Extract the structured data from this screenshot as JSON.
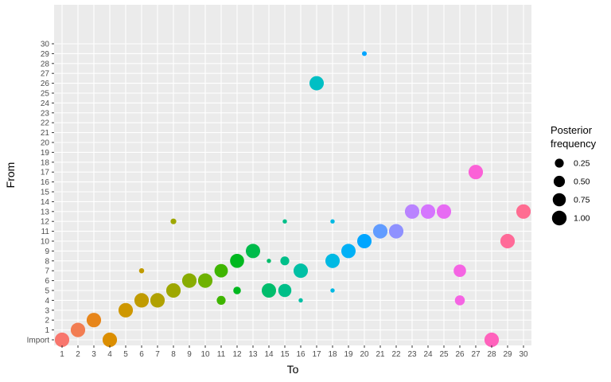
{
  "chart_data": {
    "type": "scatter",
    "title": "",
    "xlabel": "To",
    "ylabel": "From",
    "x_categories": [
      "1",
      "2",
      "3",
      "4",
      "5",
      "6",
      "7",
      "8",
      "9",
      "10",
      "11",
      "12",
      "13",
      "14",
      "15",
      "16",
      "17",
      "18",
      "19",
      "20",
      "21",
      "22",
      "23",
      "24",
      "25",
      "26",
      "27",
      "28",
      "29",
      "30"
    ],
    "y_categories": [
      "Import",
      "1",
      "2",
      "3",
      "4",
      "5",
      "6",
      "7",
      "8",
      "9",
      "10",
      "11",
      "12",
      "13",
      "14",
      "15",
      "16",
      "17",
      "18",
      "19",
      "20",
      "21",
      "22",
      "23",
      "24",
      "25",
      "26",
      "27",
      "28",
      "29",
      "30"
    ],
    "grid": true,
    "background": "#ebebeb",
    "size_legend": {
      "title": [
        "Posterior",
        "frequency"
      ],
      "placement": "right",
      "entries": [
        {
          "label": "0.25",
          "value": 0.25
        },
        {
          "label": "0.50",
          "value": 0.5
        },
        {
          "label": "0.75",
          "value": 0.75
        },
        {
          "label": "1.00",
          "value": 1.0
        }
      ]
    },
    "points": [
      {
        "to": "1",
        "from": "Import",
        "freq": 0.97,
        "color": "#F8766D"
      },
      {
        "to": "2",
        "from": "1",
        "freq": 0.97,
        "color": "#F27D52"
      },
      {
        "to": "3",
        "from": "2",
        "freq": 0.97,
        "color": "#E7861B"
      },
      {
        "to": "4",
        "from": "Import",
        "freq": 0.97,
        "color": "#DB8E00"
      },
      {
        "to": "5",
        "from": "3",
        "freq": 0.97,
        "color": "#CE9700"
      },
      {
        "to": "6",
        "from": "4",
        "freq": 0.97,
        "color": "#C09B00"
      },
      {
        "to": "6",
        "from": "7",
        "freq": 0.03,
        "color": "#C09B00"
      },
      {
        "to": "7",
        "from": "4",
        "freq": 0.97,
        "color": "#B0A100"
      },
      {
        "to": "8",
        "from": "5",
        "freq": 0.97,
        "color": "#9EA700"
      },
      {
        "to": "8",
        "from": "12",
        "freq": 0.05,
        "color": "#9EA700"
      },
      {
        "to": "9",
        "from": "6",
        "freq": 0.97,
        "color": "#88AC00"
      },
      {
        "to": "10",
        "from": "6",
        "freq": 0.97,
        "color": "#6EB200"
      },
      {
        "to": "11",
        "from": "7",
        "freq": 0.8,
        "color": "#3FB500"
      },
      {
        "to": "11",
        "from": "4",
        "freq": 0.25,
        "color": "#3FB500"
      },
      {
        "to": "12",
        "from": "8",
        "freq": 0.9,
        "color": "#00B81F"
      },
      {
        "to": "12",
        "from": "5",
        "freq": 0.15,
        "color": "#00B81F"
      },
      {
        "to": "13",
        "from": "9",
        "freq": 0.95,
        "color": "#00BB4B"
      },
      {
        "to": "14",
        "from": "5",
        "freq": 0.95,
        "color": "#00BD6C"
      },
      {
        "to": "14",
        "from": "8",
        "freq": 0.01,
        "color": "#00BD6C"
      },
      {
        "to": "15",
        "from": "5",
        "freq": 0.75,
        "color": "#00BF89"
      },
      {
        "to": "15",
        "from": "8",
        "freq": 0.25,
        "color": "#00BF89"
      },
      {
        "to": "15",
        "from": "12",
        "freq": 0.01,
        "color": "#00BF89"
      },
      {
        "to": "16",
        "from": "7",
        "freq": 0.95,
        "color": "#00C0A5"
      },
      {
        "to": "16",
        "from": "4",
        "freq": 0.01,
        "color": "#00C0A5"
      },
      {
        "to": "17",
        "from": "26",
        "freq": 0.95,
        "color": "#00BFC4"
      },
      {
        "to": "18",
        "from": "8",
        "freq": 0.95,
        "color": "#00B9E3"
      },
      {
        "to": "18",
        "from": "12",
        "freq": 0.01,
        "color": "#00B9E3"
      },
      {
        "to": "18",
        "from": "5",
        "freq": 0.01,
        "color": "#00B9E3"
      },
      {
        "to": "19",
        "from": "9",
        "freq": 0.95,
        "color": "#00B0F6"
      },
      {
        "to": "20",
        "from": "10",
        "freq": 0.95,
        "color": "#00A5FF"
      },
      {
        "to": "20",
        "from": "29",
        "freq": 0.02,
        "color": "#00A5FF"
      },
      {
        "to": "21",
        "from": "11",
        "freq": 0.97,
        "color": "#619CFF"
      },
      {
        "to": "22",
        "from": "11",
        "freq": 0.97,
        "color": "#8F91FF"
      },
      {
        "to": "23",
        "from": "13",
        "freq": 0.97,
        "color": "#B983FF"
      },
      {
        "to": "24",
        "from": "13",
        "freq": 0.97,
        "color": "#D575FE"
      },
      {
        "to": "25",
        "from": "13",
        "freq": 0.97,
        "color": "#E76BF3"
      },
      {
        "to": "26",
        "from": "7",
        "freq": 0.65,
        "color": "#F564E3"
      },
      {
        "to": "26",
        "from": "4",
        "freq": 0.35,
        "color": "#F564E3"
      },
      {
        "to": "27",
        "from": "17",
        "freq": 0.97,
        "color": "#FB61D7"
      },
      {
        "to": "28",
        "from": "Import",
        "freq": 0.97,
        "color": "#FF62BC"
      },
      {
        "to": "29",
        "from": "10",
        "freq": 0.97,
        "color": "#FF6A98"
      },
      {
        "to": "30",
        "from": "13",
        "freq": 0.97,
        "color": "#FF6C91"
      }
    ]
  }
}
